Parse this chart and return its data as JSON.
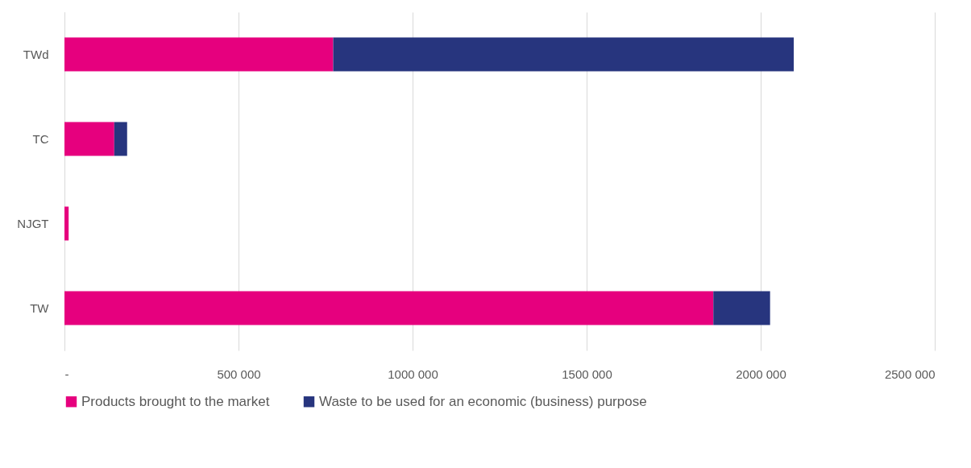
{
  "chart_data": {
    "type": "bar",
    "orientation": "horizontal",
    "stacked": true,
    "categories": [
      "TWd",
      "TC",
      "NJGT",
      "TW"
    ],
    "series": [
      {
        "name": "Products brought to the market",
        "color": "#e6007e",
        "values": [
          772000,
          143000,
          12000,
          1864000
        ]
      },
      {
        "name": "Waste to be used for an economic (business) purpose",
        "color": "#27357e",
        "values": [
          1323000,
          37000,
          0,
          163000
        ]
      }
    ],
    "xlim": [
      0,
      2500000
    ],
    "xticks": [
      {
        "value": 0,
        "label": "-"
      },
      {
        "value": 500000,
        "label": "500 000"
      },
      {
        "value": 1000000,
        "label": "1000 000"
      },
      {
        "value": 1500000,
        "label": "1500 000"
      },
      {
        "value": 2000000,
        "label": "2000 000"
      },
      {
        "value": 2500000,
        "label": "2500 000"
      }
    ],
    "grid": "x",
    "legend": "bottom"
  }
}
